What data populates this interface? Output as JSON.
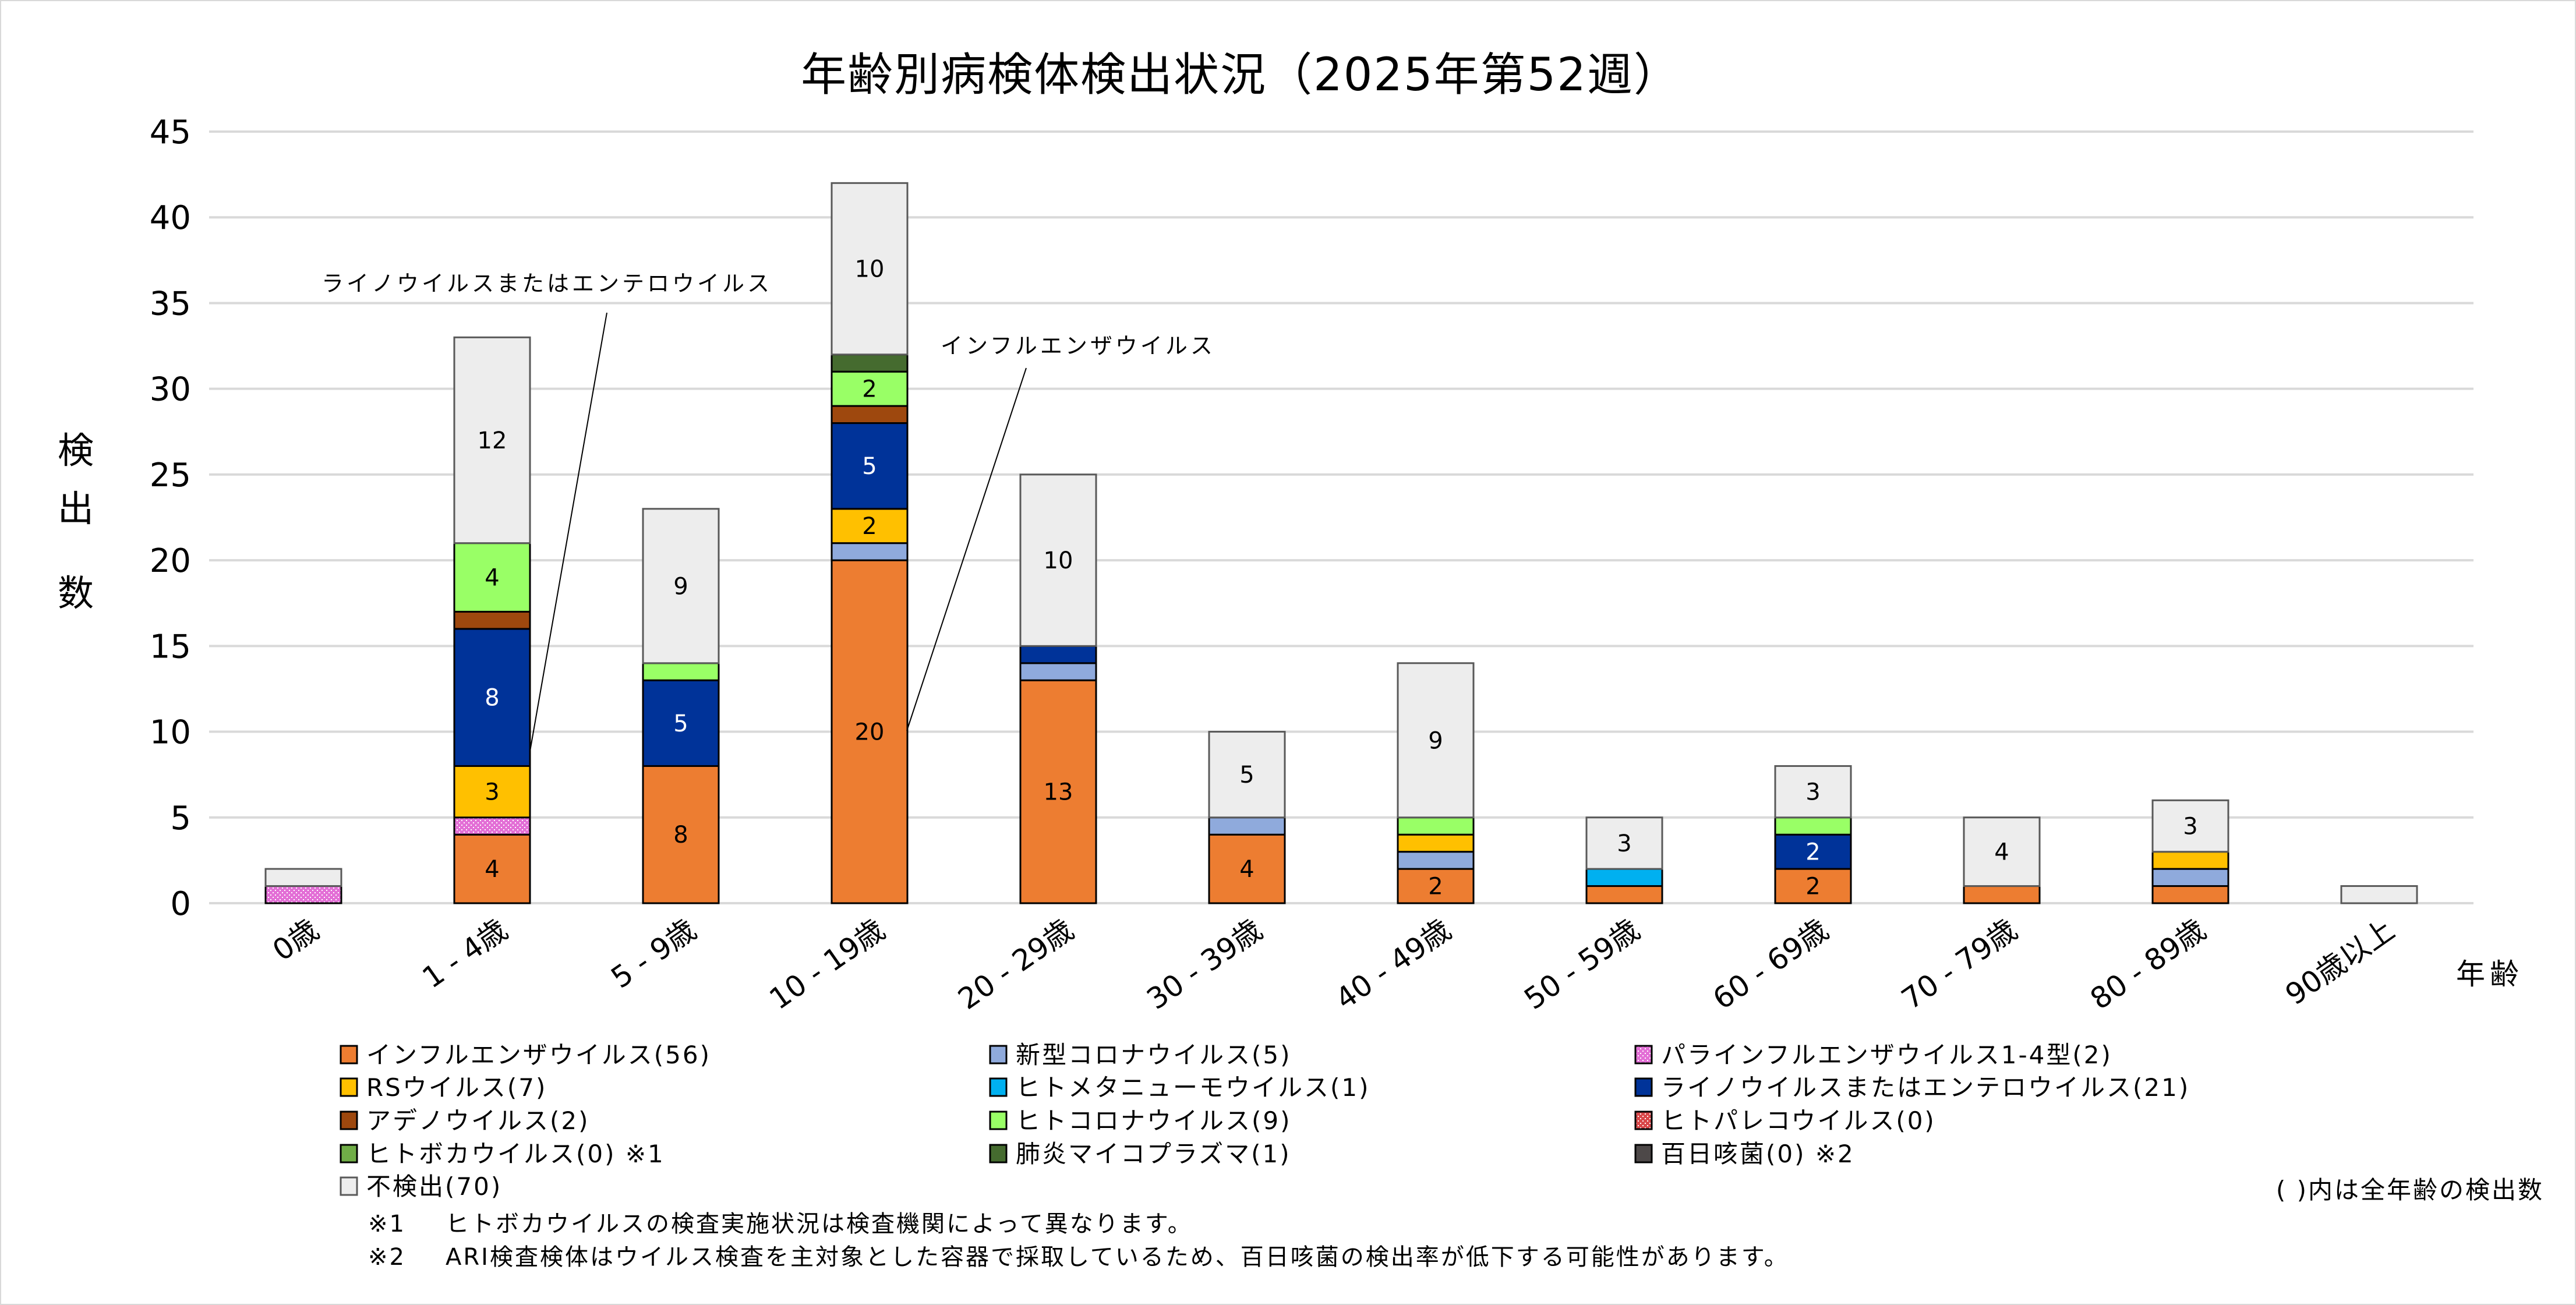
{
  "chart_data": {
    "type": "bar",
    "stacked": true,
    "title": "年齢別病検体検出状況（2025年第52週）",
    "xlabel": "年齢",
    "ylabel": "検出数",
    "ylim": [
      0,
      45
    ],
    "yticks": [
      0,
      5,
      10,
      15,
      20,
      25,
      30,
      35,
      40,
      45
    ],
    "grid": true,
    "legend_position": "bottom",
    "categories": [
      "0歳",
      "1 - 4歳",
      "5 - 9歳",
      "10 - 19歳",
      "20 - 29歳",
      "30 - 39歳",
      "40 - 49歳",
      "50 - 59歳",
      "60 - 69歳",
      "70 - 79歳",
      "80 - 89歳",
      "90歳以上"
    ],
    "series": [
      {
        "name": "インフルエンザウイルス",
        "total": 56,
        "color": "#ED7D31",
        "label_color": "#000000",
        "values": [
          0,
          4,
          8,
          20,
          13,
          4,
          2,
          1,
          2,
          1,
          1,
          0
        ],
        "labels_shown": [
          false,
          true,
          true,
          true,
          true,
          true,
          true,
          false,
          true,
          false,
          false,
          false
        ]
      },
      {
        "name": "パラインフルエンザウイルス1-4型",
        "total": 2,
        "color": "#E36FD6",
        "pattern": true,
        "label_color": "#000000",
        "values": [
          1,
          1,
          0,
          0,
          0,
          0,
          0,
          0,
          0,
          0,
          0,
          0
        ],
        "labels_shown": [
          false,
          false,
          false,
          false,
          false,
          false,
          false,
          false,
          false,
          false,
          false,
          false
        ]
      },
      {
        "name": "新型コロナウイルス",
        "total": 5,
        "color": "#8FAADC",
        "label_color": "#000000",
        "values": [
          0,
          0,
          0,
          1,
          1,
          1,
          1,
          0,
          0,
          0,
          1,
          0
        ],
        "labels_shown": [
          false,
          false,
          false,
          false,
          false,
          false,
          false,
          false,
          false,
          false,
          false,
          false
        ]
      },
      {
        "name": "RSウイルス",
        "total": 7,
        "color": "#FFC000",
        "label_color": "#000000",
        "values": [
          0,
          3,
          0,
          2,
          0,
          0,
          1,
          0,
          0,
          0,
          1,
          0
        ],
        "labels_shown": [
          false,
          true,
          false,
          true,
          false,
          false,
          false,
          false,
          false,
          false,
          false,
          false
        ]
      },
      {
        "name": "ヒトメタニューモウイルス",
        "total": 1,
        "color": "#00B0F0",
        "label_color": "#000000",
        "values": [
          0,
          0,
          0,
          0,
          0,
          0,
          0,
          1,
          0,
          0,
          0,
          0
        ],
        "labels_shown": [
          false,
          false,
          false,
          false,
          false,
          false,
          false,
          false,
          false,
          false,
          false,
          false
        ]
      },
      {
        "name": "ライノウイルスまたはエンテロウイルス",
        "total": 21,
        "color": "#003399",
        "label_color": "#FFFFFF",
        "values": [
          0,
          8,
          5,
          5,
          1,
          0,
          0,
          0,
          2,
          0,
          0,
          0
        ],
        "labels_shown": [
          false,
          true,
          true,
          true,
          false,
          false,
          false,
          false,
          true,
          false,
          false,
          false
        ]
      },
      {
        "name": "アデノウイルス",
        "total": 2,
        "color": "#9E480E",
        "label_color": "#000000",
        "values": [
          0,
          1,
          0,
          1,
          0,
          0,
          0,
          0,
          0,
          0,
          0,
          0
        ],
        "labels_shown": [
          false,
          false,
          false,
          false,
          false,
          false,
          false,
          false,
          false,
          false,
          false,
          false
        ]
      },
      {
        "name": "ヒトコロナウイルス",
        "total": 9,
        "color": "#99FF66",
        "label_color": "#000000",
        "values": [
          0,
          4,
          1,
          2,
          0,
          0,
          1,
          0,
          1,
          0,
          0,
          0
        ],
        "labels_shown": [
          false,
          true,
          false,
          true,
          false,
          false,
          false,
          false,
          false,
          false,
          false,
          false
        ]
      },
      {
        "name": "ヒトパレコウイルス",
        "total": 0,
        "color": "#D9484A",
        "pattern": true,
        "label_color": "#000000",
        "values": [
          0,
          0,
          0,
          0,
          0,
          0,
          0,
          0,
          0,
          0,
          0,
          0
        ],
        "labels_shown": [
          false,
          false,
          false,
          false,
          false,
          false,
          false,
          false,
          false,
          false,
          false,
          false
        ]
      },
      {
        "name": "ヒトボカウイルス",
        "total": 0,
        "note": "※1",
        "color": "#70AD47",
        "label_color": "#000000",
        "values": [
          0,
          0,
          0,
          0,
          0,
          0,
          0,
          0,
          0,
          0,
          0,
          0
        ],
        "labels_shown": [
          false,
          false,
          false,
          false,
          false,
          false,
          false,
          false,
          false,
          false,
          false,
          false
        ]
      },
      {
        "name": "肺炎マイコプラズマ",
        "total": 1,
        "color": "#456B2F",
        "label_color": "#000000",
        "values": [
          0,
          0,
          0,
          1,
          0,
          0,
          0,
          0,
          0,
          0,
          0,
          0
        ],
        "labels_shown": [
          false,
          false,
          false,
          false,
          false,
          false,
          false,
          false,
          false,
          false,
          false,
          false
        ]
      },
      {
        "name": "百日咳菌",
        "total": 0,
        "note": "※2",
        "color": "#4D4848",
        "label_color": "#000000",
        "values": [
          0,
          0,
          0,
          0,
          0,
          0,
          0,
          0,
          0,
          0,
          0,
          0
        ],
        "labels_shown": [
          false,
          false,
          false,
          false,
          false,
          false,
          false,
          false,
          false,
          false,
          false,
          false
        ]
      },
      {
        "name": "不検出",
        "total": 70,
        "color": "#EDEDED",
        "label_color": "#000000",
        "values": [
          1,
          12,
          9,
          10,
          10,
          5,
          9,
          3,
          3,
          4,
          3,
          1
        ],
        "labels_shown": [
          false,
          true,
          true,
          true,
          true,
          true,
          true,
          true,
          true,
          true,
          true,
          false
        ]
      }
    ],
    "legend_order": [
      "インフルエンザウイルス",
      "新型コロナウイルス",
      "パラインフルエンザウイルス1-4型",
      "RSウイルス",
      "ヒトメタニューモウイルス",
      "ライノウイルスまたはエンテロウイルス",
      "アデノウイルス",
      "ヒトコロナウイルス",
      "ヒトパレコウイルス",
      "ヒトボカウイルス",
      "肺炎マイコプラズマ",
      "百日咳菌",
      "不検出"
    ],
    "annotations": [
      {
        "text": "ライノウイルスまたはエンテロウイルス",
        "category": "1 - 4歳",
        "series": "ライノウイルスまたはエンテロウイルス"
      },
      {
        "text": "インフルエンザウイルス",
        "category": "10 - 19歳",
        "series": "インフルエンザウイルス"
      }
    ],
    "legend_note": "( )内は全年齢の検出数",
    "footnotes": [
      {
        "mark": "※1",
        "text": "ヒトボカウイルスの検査実施状況は検査機関によって異なります。"
      },
      {
        "mark": "※2",
        "text": "ARI検査検体はウイルス検査を主対象とした容器で採取しているため、百日咳菌の検出率が低下する可能性があります。"
      }
    ]
  }
}
